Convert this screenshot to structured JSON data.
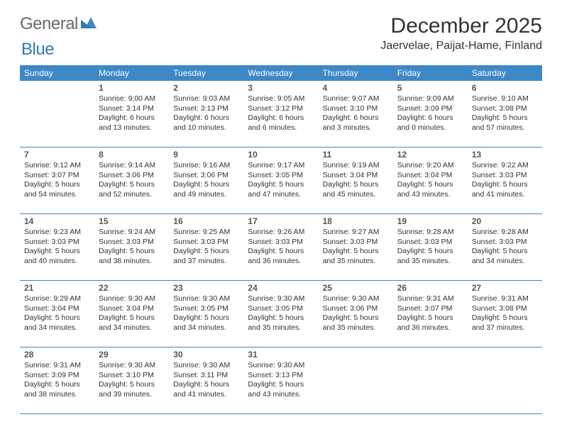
{
  "logo": {
    "general": "General",
    "blue": "Blue",
    "mark_color": "#2f79b9"
  },
  "header": {
    "month_title": "December 2025",
    "location": "Jaervelae, Paijat-Hame, Finland"
  },
  "colors": {
    "header_bg": "#3d88c6",
    "header_text": "#ffffff",
    "rule": "#3d88c6",
    "body_text": "#333333"
  },
  "fonts": {
    "title_size_pt": 22,
    "location_size_pt": 12,
    "dayheader_size_pt": 9,
    "daynum_size_pt": 9,
    "cell_size_pt": 8
  },
  "calendar": {
    "day_headers": [
      "Sunday",
      "Monday",
      "Tuesday",
      "Wednesday",
      "Thursday",
      "Friday",
      "Saturday"
    ],
    "weeks": [
      [
        {
          "blank": true
        },
        {
          "num": "1",
          "sunrise": "Sunrise: 9:00 AM",
          "sunset": "Sunset: 3:14 PM",
          "daylight": "Daylight: 6 hours and 13 minutes."
        },
        {
          "num": "2",
          "sunrise": "Sunrise: 9:03 AM",
          "sunset": "Sunset: 3:13 PM",
          "daylight": "Daylight: 6 hours and 10 minutes."
        },
        {
          "num": "3",
          "sunrise": "Sunrise: 9:05 AM",
          "sunset": "Sunset: 3:12 PM",
          "daylight": "Daylight: 6 hours and 6 minutes."
        },
        {
          "num": "4",
          "sunrise": "Sunrise: 9:07 AM",
          "sunset": "Sunset: 3:10 PM",
          "daylight": "Daylight: 6 hours and 3 minutes."
        },
        {
          "num": "5",
          "sunrise": "Sunrise: 9:09 AM",
          "sunset": "Sunset: 3:09 PM",
          "daylight": "Daylight: 6 hours and 0 minutes."
        },
        {
          "num": "6",
          "sunrise": "Sunrise: 9:10 AM",
          "sunset": "Sunset: 3:08 PM",
          "daylight": "Daylight: 5 hours and 57 minutes."
        }
      ],
      [
        {
          "num": "7",
          "sunrise": "Sunrise: 9:12 AM",
          "sunset": "Sunset: 3:07 PM",
          "daylight": "Daylight: 5 hours and 54 minutes."
        },
        {
          "num": "8",
          "sunrise": "Sunrise: 9:14 AM",
          "sunset": "Sunset: 3:06 PM",
          "daylight": "Daylight: 5 hours and 52 minutes."
        },
        {
          "num": "9",
          "sunrise": "Sunrise: 9:16 AM",
          "sunset": "Sunset: 3:06 PM",
          "daylight": "Daylight: 5 hours and 49 minutes."
        },
        {
          "num": "10",
          "sunrise": "Sunrise: 9:17 AM",
          "sunset": "Sunset: 3:05 PM",
          "daylight": "Daylight: 5 hours and 47 minutes."
        },
        {
          "num": "11",
          "sunrise": "Sunrise: 9:19 AM",
          "sunset": "Sunset: 3:04 PM",
          "daylight": "Daylight: 5 hours and 45 minutes."
        },
        {
          "num": "12",
          "sunrise": "Sunrise: 9:20 AM",
          "sunset": "Sunset: 3:04 PM",
          "daylight": "Daylight: 5 hours and 43 minutes."
        },
        {
          "num": "13",
          "sunrise": "Sunrise: 9:22 AM",
          "sunset": "Sunset: 3:03 PM",
          "daylight": "Daylight: 5 hours and 41 minutes."
        }
      ],
      [
        {
          "num": "14",
          "sunrise": "Sunrise: 9:23 AM",
          "sunset": "Sunset: 3:03 PM",
          "daylight": "Daylight: 5 hours and 40 minutes."
        },
        {
          "num": "15",
          "sunrise": "Sunrise: 9:24 AM",
          "sunset": "Sunset: 3:03 PM",
          "daylight": "Daylight: 5 hours and 38 minutes."
        },
        {
          "num": "16",
          "sunrise": "Sunrise: 9:25 AM",
          "sunset": "Sunset: 3:03 PM",
          "daylight": "Daylight: 5 hours and 37 minutes."
        },
        {
          "num": "17",
          "sunrise": "Sunrise: 9:26 AM",
          "sunset": "Sunset: 3:03 PM",
          "daylight": "Daylight: 5 hours and 36 minutes."
        },
        {
          "num": "18",
          "sunrise": "Sunrise: 9:27 AM",
          "sunset": "Sunset: 3:03 PM",
          "daylight": "Daylight: 5 hours and 35 minutes."
        },
        {
          "num": "19",
          "sunrise": "Sunrise: 9:28 AM",
          "sunset": "Sunset: 3:03 PM",
          "daylight": "Daylight: 5 hours and 35 minutes."
        },
        {
          "num": "20",
          "sunrise": "Sunrise: 9:28 AM",
          "sunset": "Sunset: 3:03 PM",
          "daylight": "Daylight: 5 hours and 34 minutes."
        }
      ],
      [
        {
          "num": "21",
          "sunrise": "Sunrise: 9:29 AM",
          "sunset": "Sunset: 3:04 PM",
          "daylight": "Daylight: 5 hours and 34 minutes."
        },
        {
          "num": "22",
          "sunrise": "Sunrise: 9:30 AM",
          "sunset": "Sunset: 3:04 PM",
          "daylight": "Daylight: 5 hours and 34 minutes."
        },
        {
          "num": "23",
          "sunrise": "Sunrise: 9:30 AM",
          "sunset": "Sunset: 3:05 PM",
          "daylight": "Daylight: 5 hours and 34 minutes."
        },
        {
          "num": "24",
          "sunrise": "Sunrise: 9:30 AM",
          "sunset": "Sunset: 3:05 PM",
          "daylight": "Daylight: 5 hours and 35 minutes."
        },
        {
          "num": "25",
          "sunrise": "Sunrise: 9:30 AM",
          "sunset": "Sunset: 3:06 PM",
          "daylight": "Daylight: 5 hours and 35 minutes."
        },
        {
          "num": "26",
          "sunrise": "Sunrise: 9:31 AM",
          "sunset": "Sunset: 3:07 PM",
          "daylight": "Daylight: 5 hours and 36 minutes."
        },
        {
          "num": "27",
          "sunrise": "Sunrise: 9:31 AM",
          "sunset": "Sunset: 3:08 PM",
          "daylight": "Daylight: 5 hours and 37 minutes."
        }
      ],
      [
        {
          "num": "28",
          "sunrise": "Sunrise: 9:31 AM",
          "sunset": "Sunset: 3:09 PM",
          "daylight": "Daylight: 5 hours and 38 minutes."
        },
        {
          "num": "29",
          "sunrise": "Sunrise: 9:30 AM",
          "sunset": "Sunset: 3:10 PM",
          "daylight": "Daylight: 5 hours and 39 minutes."
        },
        {
          "num": "30",
          "sunrise": "Sunrise: 9:30 AM",
          "sunset": "Sunset: 3:11 PM",
          "daylight": "Daylight: 5 hours and 41 minutes."
        },
        {
          "num": "31",
          "sunrise": "Sunrise: 9:30 AM",
          "sunset": "Sunset: 3:13 PM",
          "daylight": "Daylight: 5 hours and 43 minutes."
        },
        {
          "blank": true
        },
        {
          "blank": true
        },
        {
          "blank": true
        }
      ]
    ]
  }
}
